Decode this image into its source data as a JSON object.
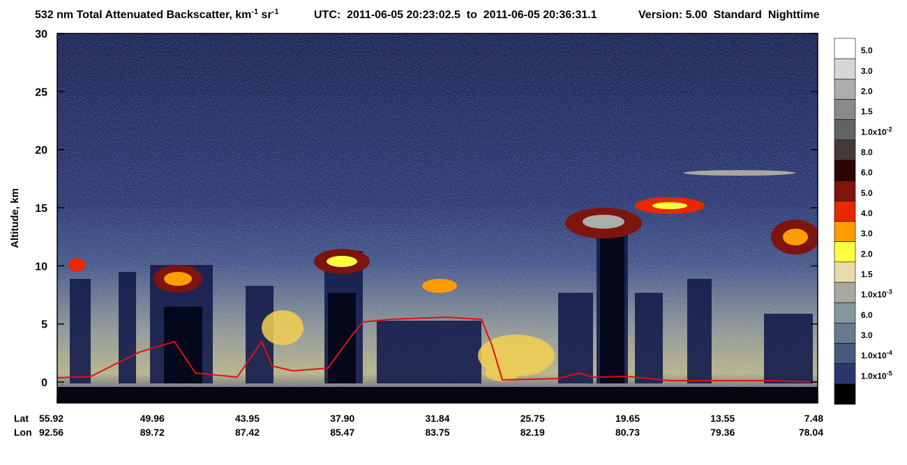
{
  "chart_data": {
    "type": "heatmap",
    "title": {
      "main": "532 nm Total Attenuated Backscatter, km",
      "sup1": "-1",
      "unit2": " sr",
      "sup2": "-1",
      "utc": "UTC:  2011-06-05 20:23:02.5  to  2011-06-05 20:36:31.1",
      "version": "Version: 5.00  Standard  Nighttime"
    },
    "ylabel": "Altitude, km",
    "ylim": [
      -1.8,
      30
    ],
    "yticks": [
      0,
      5,
      10,
      15,
      20,
      25,
      30
    ],
    "row_labels": [
      "Lat",
      "Lon"
    ],
    "lat": [
      "55.92",
      "49.96",
      "43.95",
      "37.90",
      "31.84",
      "25.75",
      "19.65",
      "13.55",
      "7.48"
    ],
    "lon": [
      "92.56",
      "89.72",
      "87.42",
      "85.47",
      "83.75",
      "82.19",
      "80.73",
      "79.36",
      "78.04"
    ],
    "colorbar": [
      {
        "color": "#ffffff",
        "label": "5.0"
      },
      {
        "color": "#d6d6d6",
        "label": "3.0"
      },
      {
        "color": "#adadad",
        "label": "2.0"
      },
      {
        "color": "#8a8a8a",
        "label": "1.5"
      },
      {
        "color": "#636363",
        "label": "1.0x10",
        "exponent": "-2"
      },
      {
        "color": "#453a36",
        "label": "8.0"
      },
      {
        "color": "#2e0404",
        "label": "6.0"
      },
      {
        "color": "#7d140e",
        "label": "5.0"
      },
      {
        "color": "#e82800",
        "label": "4.0"
      },
      {
        "color": "#ff9c00",
        "label": "3.0"
      },
      {
        "color": "#ffff40",
        "label": "2.0"
      },
      {
        "color": "#e9dcab",
        "label": "1.5"
      },
      {
        "color": "#a9a99d",
        "label": "1.0x10",
        "exponent": "-3"
      },
      {
        "color": "#8496a0",
        "label": "6.0"
      },
      {
        "color": "#667a90",
        "label": "3.0"
      },
      {
        "color": "#465a80",
        "label": "1.0x10",
        "exponent": "-4"
      },
      {
        "color": "#2a376f",
        "label": "1.0x10",
        "exponent": "-5"
      },
      {
        "color": "#000000"
      }
    ]
  }
}
